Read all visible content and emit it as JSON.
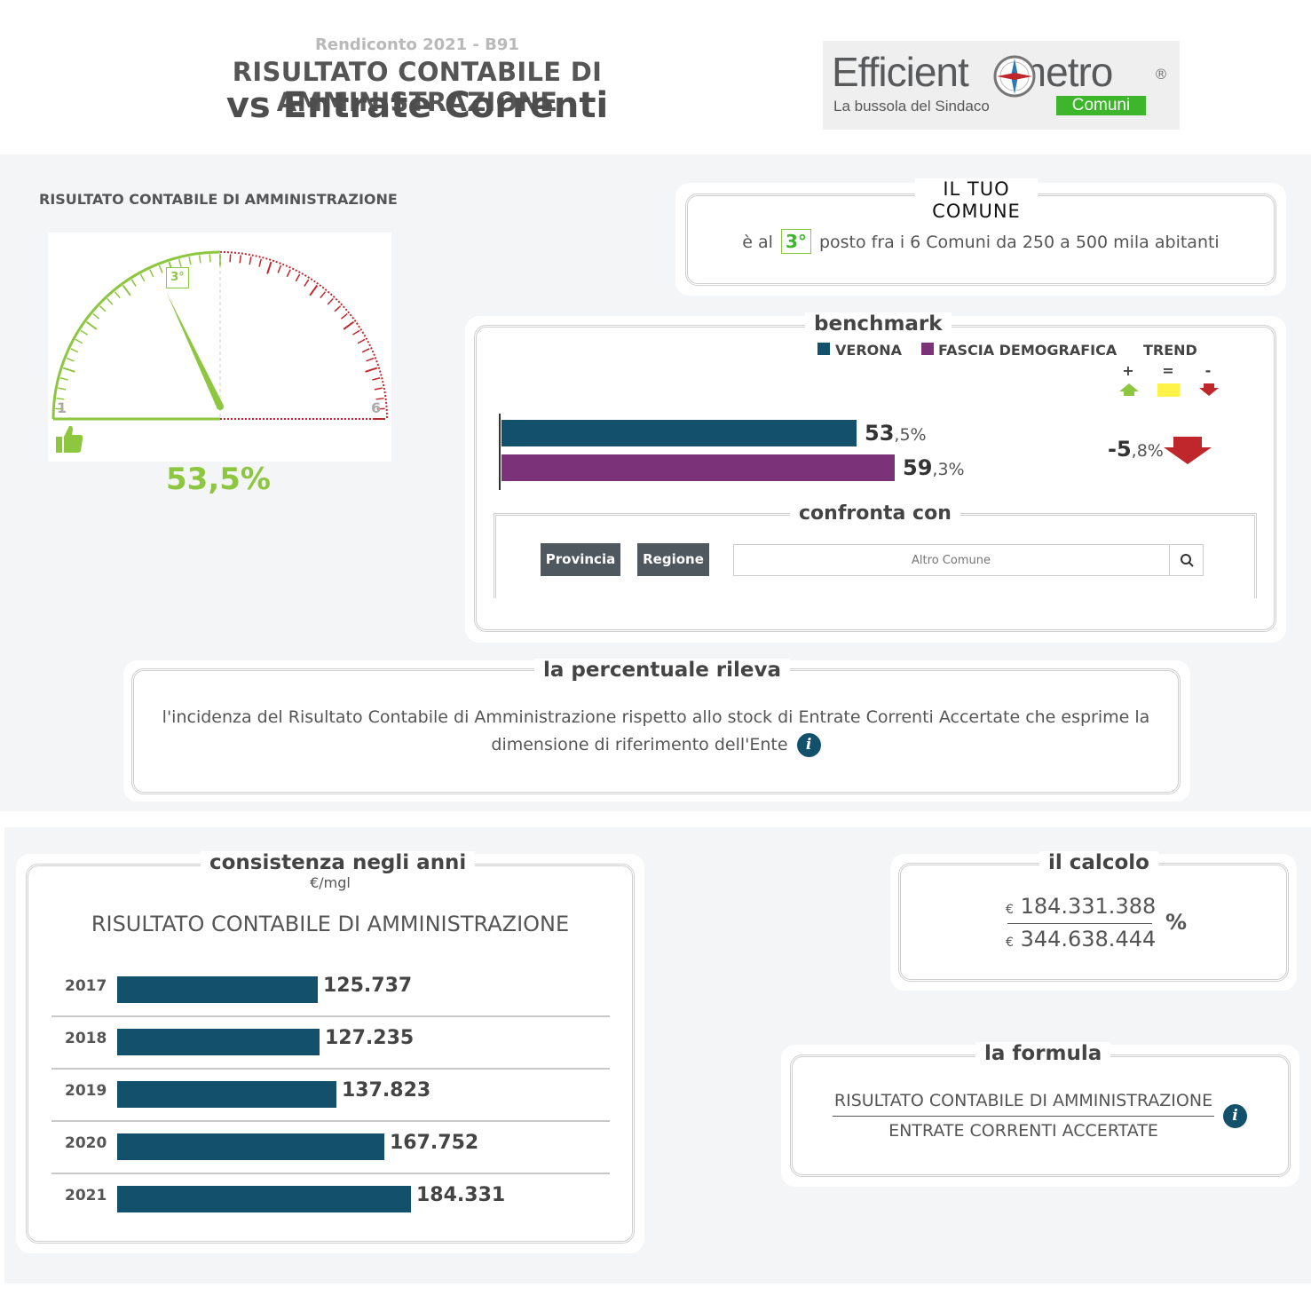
{
  "header": {
    "subtitle": "Rendiconto 2021 - B91",
    "title_line1": "RISULTATO CONTABILE DI AMMINISTRAZIONE",
    "title_line2": "vs Entrate Correnti"
  },
  "logo": {
    "word_left": "Efficient",
    "word_right": "metro",
    "registered": "®",
    "tagline": "La bussola del Sindaco",
    "badge": "Comuni",
    "badge_color": "#3db62b"
  },
  "gauge": {
    "title": "RISULTATO CONTABILE DI AMMINISTRAZIONE",
    "rank_label": "3°",
    "rank": 3,
    "min_label": "1",
    "max_label": "6",
    "value": "53,5%",
    "good_color": "#8dc63f",
    "bad_color": "#c0272d",
    "thumb_icon": "thumbs-up-icon"
  },
  "il_tuo_comune": {
    "title_line1": "IL TUO",
    "title_line2": "COMUNE",
    "text_before": "è al",
    "rank": "3°",
    "text_after": "posto fra i 6 Comuni da 250 a 500 mila abitanti"
  },
  "benchmark": {
    "title": "benchmark",
    "legend": [
      {
        "label": "VERONA",
        "color": "#13506b"
      },
      {
        "label": "FASCIA DEMOGRAFICA",
        "color": "#7b3278"
      }
    ],
    "trend_title": "TREND",
    "trend_symbols": [
      "+",
      "=",
      "-"
    ],
    "trend_colors": [
      "#8dc63f",
      "#fff34a",
      "#c0272d"
    ],
    "bars": [
      {
        "value": 53.5,
        "int": "53",
        "dec": ",5%",
        "color": "#13506b"
      },
      {
        "value": 59.3,
        "int": "59",
        "dec": ",3%",
        "color": "#7b3278"
      }
    ],
    "trend_value_int": "-5",
    "trend_value_dec": ",8%"
  },
  "confronta": {
    "title": "confronta con",
    "provincia": "Provincia",
    "regione": "Regione",
    "search_placeholder": "Altro Comune"
  },
  "percentuale": {
    "title": "la percentuale rileva",
    "line1": "l'incidenza del Risultato Contabile di Amministrazione rispetto allo stock di Entrate Correnti Accertate che esprime la",
    "line2": "dimensione di riferimento dell'Ente"
  },
  "consistenza": {
    "title": "consistenza negli anni",
    "unit": "€/mgl",
    "chart_title": "RISULTATO CONTABILE DI AMMINISTRAZIONE"
  },
  "chart_data": {
    "type": "bar",
    "title": "RISULTATO CONTABILE DI AMMINISTRAZIONE",
    "categories": [
      "2017",
      "2018",
      "2019",
      "2020",
      "2021"
    ],
    "values": [
      125737,
      127235,
      137823,
      167752,
      184331
    ],
    "labels": [
      "125.737",
      "127.235",
      "137.823",
      "167.752",
      "184.331"
    ],
    "ylabel": "€/mgl",
    "color": "#13506b"
  },
  "calcolo": {
    "title": "il calcolo",
    "currency": "€",
    "numerator": "184.331.388",
    "denominator": "344.638.444",
    "percent_sign": "%"
  },
  "formula": {
    "title": "la formula",
    "numerator": "RISULTATO CONTABILE DI AMMINISTRAZIONE",
    "denominator": "ENTRATE CORRENTI ACCERTATE"
  }
}
